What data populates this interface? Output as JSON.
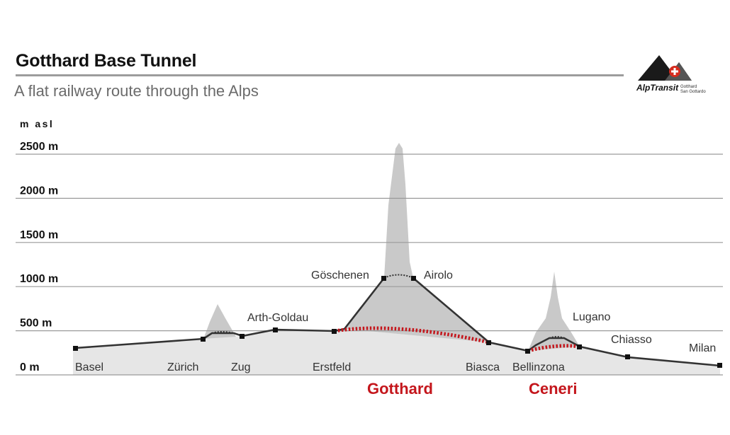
{
  "header": {
    "title": "Gotthard Base Tunnel",
    "subtitle": "A flat railway route through the Alps"
  },
  "logo": {
    "name": "AlpTransit",
    "sub1": "Gotthard",
    "sub2": "San Gottardo"
  },
  "axis": {
    "unit": "m asl",
    "ticks": [
      {
        "label": "2500 m",
        "value": 2500
      },
      {
        "label": "2000 m",
        "value": 2000
      },
      {
        "label": "1500 m",
        "value": 1500
      },
      {
        "label": "1000 m",
        "value": 1000
      },
      {
        "label": "500 m",
        "value": 500
      },
      {
        "label": "0 m",
        "value": 0
      }
    ]
  },
  "stations": [
    {
      "name": "Basel",
      "elev": 290
    },
    {
      "name": "Zürich",
      "elev": 400
    },
    {
      "name": "Zug",
      "elev": 430
    },
    {
      "name": "Arth-Goldau",
      "elev": 510
    },
    {
      "name": "Erstfeld",
      "elev": 475
    },
    {
      "name": "Göschenen",
      "elev": 1100
    },
    {
      "name": "Airolo",
      "elev": 1140
    },
    {
      "name": "Biasca",
      "elev": 300
    },
    {
      "name": "Bellinzona",
      "elev": 240
    },
    {
      "name": "Lugano",
      "elev": 335
    },
    {
      "name": "Chiasso",
      "elev": 240
    },
    {
      "name": "Milan",
      "elev": 120
    }
  ],
  "tunnels": {
    "gotthard": "Gotthard",
    "ceneri": "Ceneri"
  },
  "colors": {
    "line": "#333333",
    "tunnel": "#c4161c",
    "mountain": "#c8c8c8",
    "ground": "#e6e6e6",
    "grid": "#9a9a9a",
    "tunnel_label": "#c4161c"
  }
}
